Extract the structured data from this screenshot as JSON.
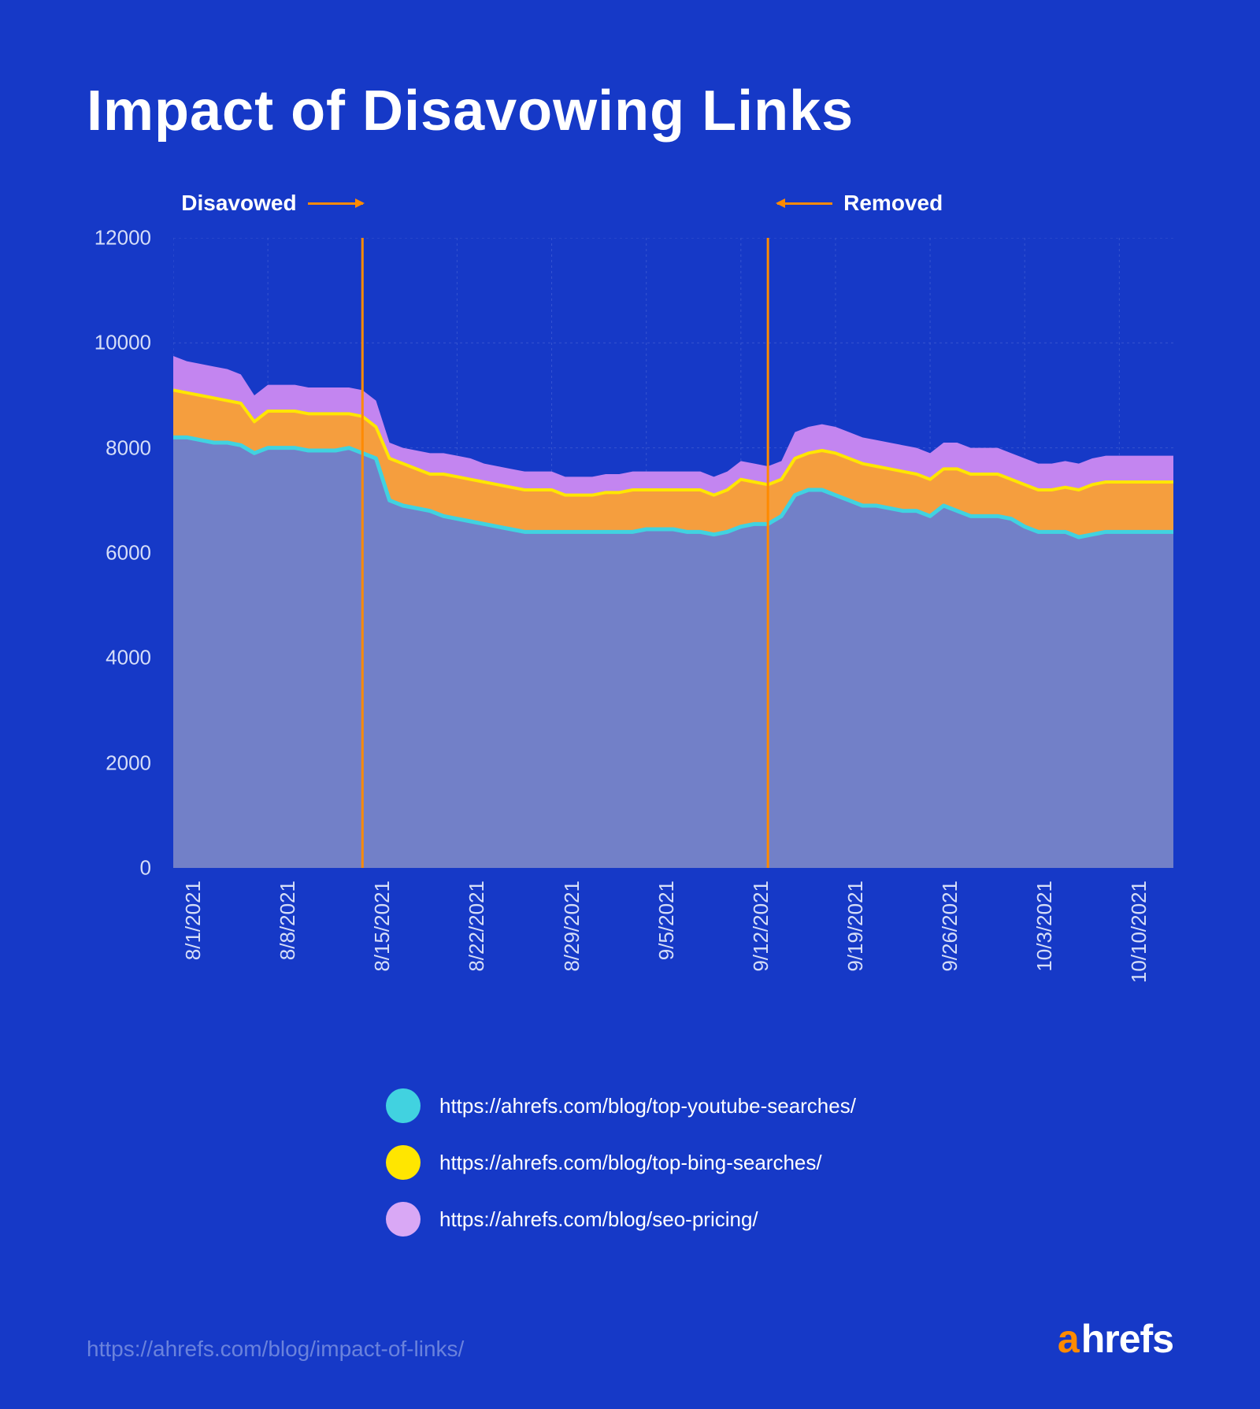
{
  "page": {
    "title": "Impact of Disavowing Links",
    "footer_link": "https://ahrefs.com/blog/impact-of-links/",
    "brand_a": "a",
    "brand_rest": "hrefs",
    "background_color": "#1639c7"
  },
  "chart": {
    "type": "area",
    "ylim": [
      0,
      12000
    ],
    "ytick_step": 2000,
    "y_ticks": [
      0,
      2000,
      4000,
      6000,
      8000,
      10000,
      12000
    ],
    "x_categories": [
      "8/1/2021",
      "8/8/2021",
      "8/15/2021",
      "8/22/2021",
      "8/29/2021",
      "9/5/2021",
      "9/12/2021",
      "9/19/2021",
      "9/26/2021",
      "10/3/2021",
      "10/10/2021"
    ],
    "x_count": 75,
    "x_major_indices": [
      0,
      7,
      14,
      21,
      28,
      35,
      42,
      49,
      56,
      63,
      70
    ],
    "grid_color": "#4a66d6",
    "axis_label_color": "#d6def8",
    "axis_label_fontsize": 26,
    "title_fontsize": 72,
    "annotations": [
      {
        "label": "Disavowed",
        "index": 14,
        "arrow_dir": "right",
        "label_side": "left"
      },
      {
        "label": "Removed",
        "index": 44,
        "arrow_dir": "left",
        "label_side": "right"
      }
    ],
    "marker_color": "#ff8a00",
    "series": [
      {
        "name": "youtube",
        "legend_label": "https://ahrefs.com/blog/top-youtube-searches/",
        "fill_color": "#5a7ae0",
        "fill_opacity": 0.85,
        "stroke_color": "#41d2e0",
        "stroke_width": 5,
        "legend_dot_color": "#41d2e0",
        "values": [
          8200,
          8200,
          8150,
          8100,
          8100,
          8050,
          7900,
          8000,
          8000,
          8000,
          7950,
          7950,
          7950,
          8000,
          7900,
          7800,
          7000,
          6900,
          6850,
          6800,
          6700,
          6650,
          6600,
          6550,
          6500,
          6450,
          6400,
          6400,
          6400,
          6400,
          6400,
          6400,
          6400,
          6400,
          6400,
          6450,
          6450,
          6450,
          6400,
          6400,
          6350,
          6400,
          6500,
          6550,
          6550,
          6700,
          7100,
          7200,
          7200,
          7100,
          7000,
          6900,
          6900,
          6850,
          6800,
          6800,
          6700,
          6900,
          6800,
          6700,
          6700,
          6700,
          6650,
          6500,
          6400,
          6400,
          6400,
          6300,
          6350,
          6400,
          6400,
          6400,
          6400,
          6400,
          6400
        ]
      },
      {
        "name": "bing",
        "legend_label": "https://ahrefs.com/blog/top-bing-searches/",
        "fill_color": "#f59e3e",
        "fill_opacity": 1.0,
        "stroke_color": "#ffe600",
        "stroke_width": 4,
        "legend_dot_color": "#ffe600",
        "values": [
          9100,
          9050,
          9000,
          8950,
          8900,
          8850,
          8500,
          8700,
          8700,
          8700,
          8650,
          8650,
          8650,
          8650,
          8600,
          8400,
          7800,
          7700,
          7600,
          7500,
          7500,
          7450,
          7400,
          7350,
          7300,
          7250,
          7200,
          7200,
          7200,
          7100,
          7100,
          7100,
          7150,
          7150,
          7200,
          7200,
          7200,
          7200,
          7200,
          7200,
          7100,
          7200,
          7400,
          7350,
          7300,
          7400,
          7800,
          7900,
          7950,
          7900,
          7800,
          7700,
          7650,
          7600,
          7550,
          7500,
          7400,
          7600,
          7600,
          7500,
          7500,
          7500,
          7400,
          7300,
          7200,
          7200,
          7250,
          7200,
          7300,
          7350,
          7350,
          7350,
          7350,
          7350,
          7350
        ]
      },
      {
        "name": "pricing",
        "legend_label": "https://ahrefs.com/blog/seo-pricing/",
        "fill_color": "#c385f0",
        "fill_opacity": 1.0,
        "stroke_color": "#c385f0",
        "stroke_width": 0,
        "legend_dot_color": "#d9a8f5",
        "values": [
          9750,
          9650,
          9600,
          9550,
          9500,
          9400,
          9000,
          9200,
          9200,
          9200,
          9150,
          9150,
          9150,
          9150,
          9100,
          8900,
          8100,
          8000,
          7950,
          7900,
          7900,
          7850,
          7800,
          7700,
          7650,
          7600,
          7550,
          7550,
          7550,
          7450,
          7450,
          7450,
          7500,
          7500,
          7550,
          7550,
          7550,
          7550,
          7550,
          7550,
          7450,
          7550,
          7750,
          7700,
          7650,
          7750,
          8300,
          8400,
          8450,
          8400,
          8300,
          8200,
          8150,
          8100,
          8050,
          8000,
          7900,
          8100,
          8100,
          8000,
          8000,
          8000,
          7900,
          7800,
          7700,
          7700,
          7750,
          7700,
          7800,
          7850,
          7850,
          7850,
          7850,
          7850,
          7850
        ]
      }
    ]
  }
}
